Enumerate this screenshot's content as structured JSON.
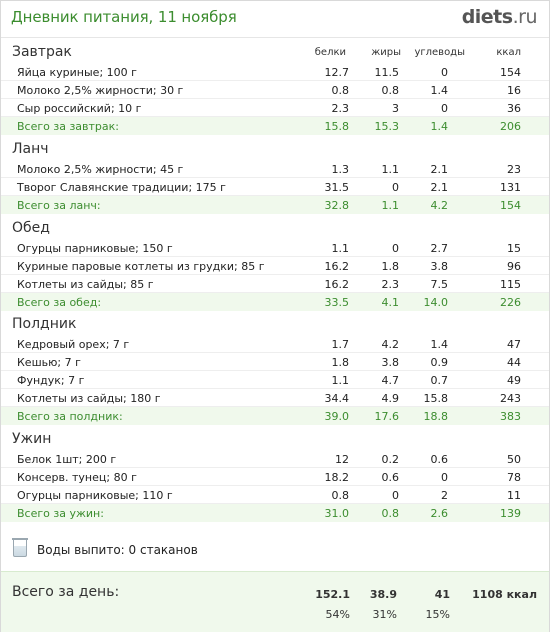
{
  "header": {
    "title": "Дневник питания, 11 ноября",
    "logo_main": "diets",
    "logo_tld": ".ru"
  },
  "columns": [
    "белки",
    "жиры",
    "углеводы",
    "ккал"
  ],
  "meals": [
    {
      "title": "Завтрак",
      "items": [
        {
          "name": "Яйца куриные; 100 г",
          "protein": "12.7",
          "fat": "11.5",
          "carbs": "0",
          "kcal": "154"
        },
        {
          "name": "Молоко 2,5% жирности; 30 г",
          "protein": "0.8",
          "fat": "0.8",
          "carbs": "1.4",
          "kcal": "16"
        },
        {
          "name": "Сыр российский; 10 г",
          "protein": "2.3",
          "fat": "3",
          "carbs": "0",
          "kcal": "36"
        }
      ],
      "total": {
        "name": "Всего за завтрак:",
        "protein": "15.8",
        "fat": "15.3",
        "carbs": "1.4",
        "kcal": "206"
      }
    },
    {
      "title": "Ланч",
      "items": [
        {
          "name": "Молоко 2,5% жирности; 45 г",
          "protein": "1.3",
          "fat": "1.1",
          "carbs": "2.1",
          "kcal": "23"
        },
        {
          "name": "Творог Славянские традиции; 175 г",
          "protein": "31.5",
          "fat": "0",
          "carbs": "2.1",
          "kcal": "131"
        }
      ],
      "total": {
        "name": "Всего за ланч:",
        "protein": "32.8",
        "fat": "1.1",
        "carbs": "4.2",
        "kcal": "154"
      }
    },
    {
      "title": "Обед",
      "items": [
        {
          "name": "Огурцы парниковые; 150 г",
          "protein": "1.1",
          "fat": "0",
          "carbs": "2.7",
          "kcal": "15"
        },
        {
          "name": "Куриные паровые котлеты из грудки; 85 г",
          "protein": "16.2",
          "fat": "1.8",
          "carbs": "3.8",
          "kcal": "96"
        },
        {
          "name": "Котлеты из сайды; 85 г",
          "protein": "16.2",
          "fat": "2.3",
          "carbs": "7.5",
          "kcal": "115"
        }
      ],
      "total": {
        "name": "Всего за обед:",
        "protein": "33.5",
        "fat": "4.1",
        "carbs": "14.0",
        "kcal": "226"
      }
    },
    {
      "title": "Полдник",
      "items": [
        {
          "name": "Кедровый орех; 7 г",
          "protein": "1.7",
          "fat": "4.2",
          "carbs": "1.4",
          "kcal": "47"
        },
        {
          "name": "Кешью; 7 г",
          "protein": "1.8",
          "fat": "3.8",
          "carbs": "0.9",
          "kcal": "44"
        },
        {
          "name": "Фундук; 7 г",
          "protein": "1.1",
          "fat": "4.7",
          "carbs": "0.7",
          "kcal": "49"
        },
        {
          "name": "Котлеты из сайды; 180 г",
          "protein": "34.4",
          "fat": "4.9",
          "carbs": "15.8",
          "kcal": "243"
        }
      ],
      "total": {
        "name": "Всего за полдник:",
        "protein": "39.0",
        "fat": "17.6",
        "carbs": "18.8",
        "kcal": "383"
      }
    },
    {
      "title": "Ужин",
      "items": [
        {
          "name": "Белок 1шт; 200 г",
          "protein": "12",
          "fat": "0.2",
          "carbs": "0.6",
          "kcal": "50"
        },
        {
          "name": "Консерв. тунец; 80 г",
          "protein": "18.2",
          "fat": "0.6",
          "carbs": "0",
          "kcal": "78"
        },
        {
          "name": "Огурцы парниковые; 110 г",
          "protein": "0.8",
          "fat": "0",
          "carbs": "2",
          "kcal": "11"
        }
      ],
      "total": {
        "name": "Всего за ужин:",
        "protein": "31.0",
        "fat": "0.8",
        "carbs": "2.6",
        "kcal": "139"
      }
    }
  ],
  "water": {
    "icon": "water-glass-icon",
    "text": "Воды выпито: 0 стаканов"
  },
  "day_total": {
    "title": "Всего за день:",
    "protein": "152.1",
    "fat": "38.9",
    "carbs": "41",
    "kcal": "1108 ккал",
    "protein_pct": "54%",
    "fat_pct": "31%",
    "carbs_pct": "15%"
  },
  "colors": {
    "accent_green": "#3c8d2f",
    "total_row_bg": "#f0f9ec"
  }
}
